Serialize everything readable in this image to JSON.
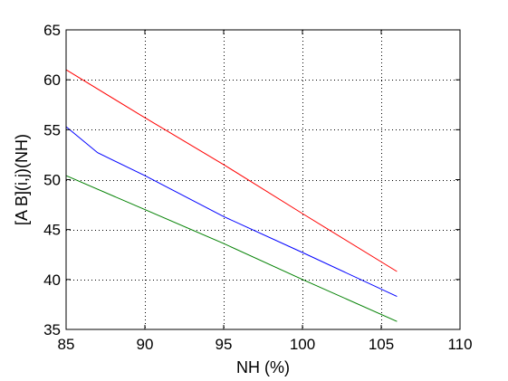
{
  "chart_data": {
    "type": "line",
    "title": "",
    "xlabel": "NH (%)",
    "ylabel": "[A B](i,j)(NH)",
    "xlim": [
      85,
      110
    ],
    "ylim": [
      35,
      65
    ],
    "xticks": [
      85,
      90,
      95,
      100,
      105,
      110
    ],
    "yticks": [
      35,
      40,
      45,
      50,
      55,
      60,
      65
    ],
    "xtick_labels": [
      "85",
      "90",
      "95",
      "100",
      "105",
      "110"
    ],
    "ytick_labels": [
      "35",
      "40",
      "45",
      "50",
      "55",
      "60",
      "65"
    ],
    "grid": true,
    "grid_style": "dotted",
    "legend": null,
    "series": [
      {
        "color": "#ff0000",
        "x": [
          85,
          90,
          95,
          100,
          106
        ],
        "y": [
          61.0,
          56.2,
          51.5,
          46.6,
          40.8
        ]
      },
      {
        "color": "#0000ff",
        "x": [
          85,
          87,
          90,
          95,
          100,
          106
        ],
        "y": [
          55.3,
          52.7,
          50.4,
          46.3,
          42.7,
          38.3
        ]
      },
      {
        "color": "#008000",
        "x": [
          85,
          90,
          95,
          100,
          106
        ],
        "y": [
          50.4,
          47.0,
          43.6,
          40.0,
          35.8
        ]
      }
    ]
  }
}
